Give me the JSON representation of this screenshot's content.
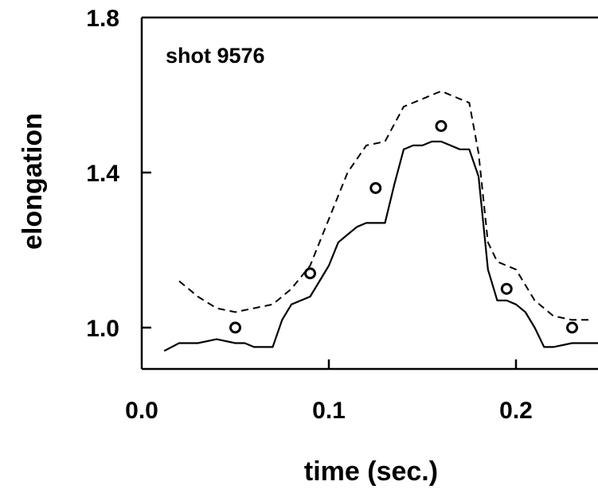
{
  "chart_data": {
    "type": "line",
    "title": "",
    "annotation": "shot 9576",
    "xlabel": "time (sec.)",
    "ylabel": "elongation",
    "xlim": [
      0.0,
      0.25
    ],
    "ylim": [
      0.9,
      1.8
    ],
    "x_ticks": [
      {
        "value": 0.0,
        "label": "0.0"
      },
      {
        "value": 0.1,
        "label": "0.1"
      },
      {
        "value": 0.2,
        "label": "0.2"
      }
    ],
    "y_ticks": [
      {
        "value": 1.0,
        "label": "1.0"
      },
      {
        "value": 1.4,
        "label": "1.4"
      },
      {
        "value": 1.8,
        "label": "1.8"
      }
    ],
    "grid": false,
    "legend": "none",
    "series": [
      {
        "style": "solid",
        "color": "#000000",
        "x": [
          0.012,
          0.02,
          0.03,
          0.04,
          0.05,
          0.055,
          0.06,
          0.065,
          0.07,
          0.075,
          0.08,
          0.085,
          0.09,
          0.095,
          0.1,
          0.105,
          0.11,
          0.115,
          0.12,
          0.125,
          0.13,
          0.135,
          0.14,
          0.145,
          0.15,
          0.155,
          0.16,
          0.165,
          0.17,
          0.175,
          0.18,
          0.185,
          0.19,
          0.195,
          0.2,
          0.205,
          0.21,
          0.215,
          0.22,
          0.23,
          0.24,
          0.25
        ],
        "y": [
          0.94,
          0.96,
          0.96,
          0.97,
          0.96,
          0.96,
          0.95,
          0.95,
          0.95,
          1.02,
          1.06,
          1.07,
          1.08,
          1.12,
          1.16,
          1.22,
          1.24,
          1.26,
          1.27,
          1.27,
          1.27,
          1.37,
          1.46,
          1.47,
          1.47,
          1.48,
          1.48,
          1.47,
          1.46,
          1.46,
          1.39,
          1.15,
          1.07,
          1.07,
          1.06,
          1.04,
          1.0,
          0.95,
          0.95,
          0.96,
          0.96,
          0.96
        ]
      },
      {
        "style": "dashed",
        "color": "#000000",
        "x": [
          0.02,
          0.03,
          0.04,
          0.05,
          0.06,
          0.07,
          0.08,
          0.09,
          0.1,
          0.11,
          0.12,
          0.13,
          0.14,
          0.15,
          0.16,
          0.17,
          0.175,
          0.18,
          0.185,
          0.19,
          0.2,
          0.21,
          0.22,
          0.23,
          0.24
        ],
        "y": [
          1.12,
          1.08,
          1.05,
          1.04,
          1.05,
          1.06,
          1.1,
          1.16,
          1.28,
          1.4,
          1.47,
          1.48,
          1.57,
          1.59,
          1.61,
          1.59,
          1.58,
          1.45,
          1.22,
          1.17,
          1.15,
          1.07,
          1.03,
          1.02,
          1.02
        ]
      },
      {
        "style": "markers",
        "marker": "open-circle",
        "color": "#000000",
        "x": [
          0.05,
          0.09,
          0.125,
          0.16,
          0.195,
          0.23
        ],
        "y": [
          1.0,
          1.14,
          1.36,
          1.52,
          1.1,
          1.0
        ]
      }
    ]
  }
}
